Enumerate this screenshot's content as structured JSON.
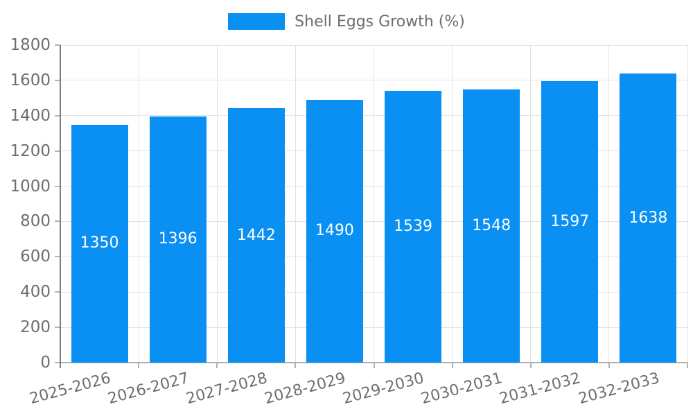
{
  "chart_data": {
    "type": "bar",
    "title": "",
    "legend": {
      "label": "Shell Eggs Growth (%)",
      "position": "top"
    },
    "categories": [
      "2025-2026",
      "2026-2027",
      "2027-2028",
      "2028-2029",
      "2029-2030",
      "2030-2031",
      "2031-2032",
      "2032-2033"
    ],
    "series": [
      {
        "name": "Shell Eggs Growth (%)",
        "values": [
          1350,
          1396,
          1442,
          1490,
          1539,
          1548,
          1597,
          1638
        ]
      }
    ],
    "xlabel": "",
    "ylabel": "",
    "ylim": [
      0,
      1800
    ],
    "y_ticks": [
      0,
      200,
      400,
      600,
      800,
      1000,
      1200,
      1400,
      1600,
      1800
    ],
    "grid": true,
    "x_label_rotation_deg": -15,
    "colors": {
      "bar": "#0990f2",
      "value_label": "#ffffff",
      "axis_text": "#6e6e6e",
      "gridline": "#e2e2e2",
      "y_axis_line": "#7d7d7d",
      "x_axis_line": "#b0b0b0",
      "tick": "#b3b3b3",
      "background": "#ffffff"
    }
  }
}
